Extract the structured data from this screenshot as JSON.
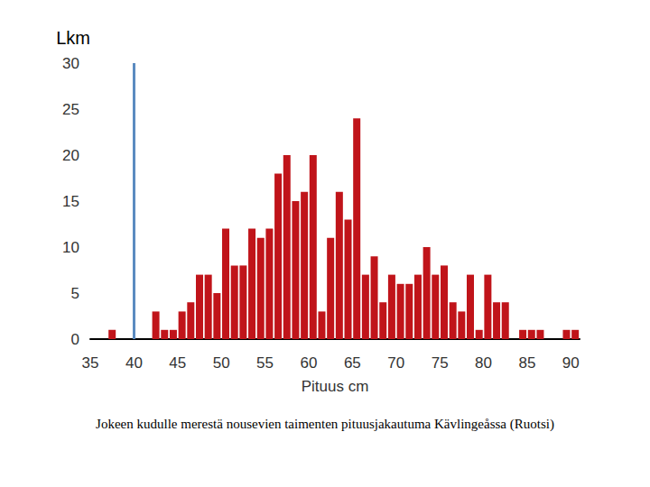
{
  "chart_data": {
    "type": "histogram",
    "y_label": "Lkm",
    "x_label": "Pituus cm",
    "caption": "Jokeen kudulle merestä nousevien taimenten pituusjakautuma Kävlingeåssa (Ruotsi)",
    "bins": [
      35,
      36,
      37,
      38,
      39,
      40,
      41,
      42,
      43,
      44,
      45,
      46,
      47,
      48,
      49,
      50,
      51,
      52,
      53,
      54,
      55,
      56,
      57,
      58,
      59,
      60,
      61,
      62,
      63,
      64,
      65,
      66,
      67,
      68,
      69,
      70,
      71,
      72,
      73,
      74,
      75,
      76,
      77,
      78,
      79,
      80,
      81,
      82,
      83,
      84,
      85,
      86,
      87,
      88,
      89,
      90,
      91
    ],
    "counts": [
      0,
      0,
      1,
      0,
      0,
      0,
      0,
      3,
      1,
      1,
      3,
      4,
      7,
      7,
      5,
      12,
      8,
      8,
      12,
      11,
      12,
      18,
      20,
      15,
      16,
      20,
      3,
      11,
      16,
      13,
      24,
      7,
      9,
      4,
      7,
      6,
      6,
      7,
      10,
      7,
      8,
      4,
      3,
      7,
      1,
      7,
      4,
      4,
      0,
      1,
      1,
      1,
      0,
      0,
      1,
      1
    ],
    "color": "#c0141a",
    "marker_line": {
      "x": 40,
      "color": "#5b8bc0"
    },
    "xlim": [
      35,
      91
    ],
    "xticks": [
      35,
      40,
      45,
      50,
      55,
      60,
      65,
      70,
      75,
      80,
      85,
      90
    ],
    "ylim": [
      0,
      30
    ],
    "yticks": [
      0,
      5,
      10,
      15,
      20,
      25,
      30
    ],
    "grid": false
  }
}
